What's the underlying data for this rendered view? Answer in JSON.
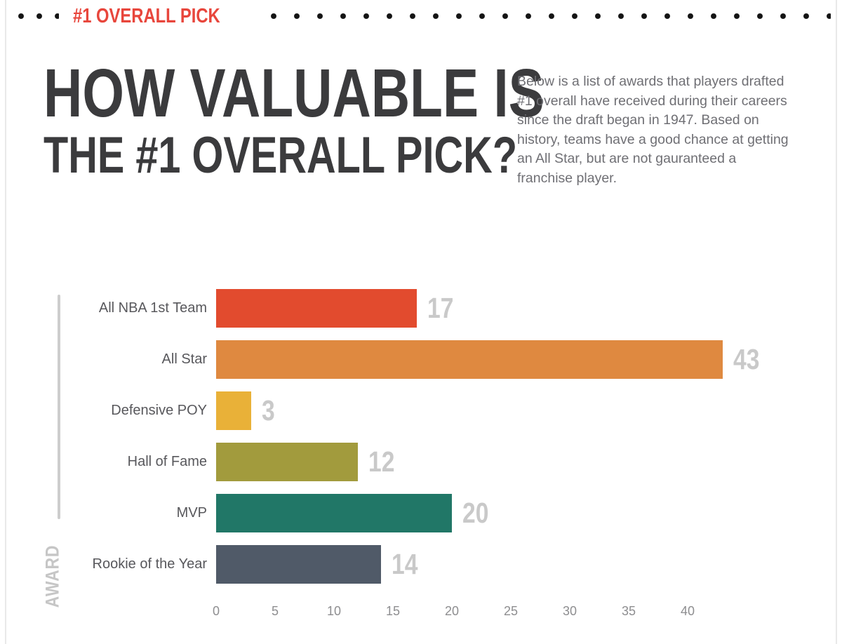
{
  "header": {
    "label": "#1 OVERALL PICK",
    "accent_color": "#e8463c"
  },
  "title": {
    "line1": "HOW VALUABLE IS",
    "line2": "THE #1 OVERALL PICK?",
    "color": "#3b3b3d"
  },
  "intro": {
    "text": "Below is a list of awards that players drafted #1 overall have received during their careers since the draft began in 1947. Based on history, teams have a good chance at getting an All Star, but are not gauranteed a franchise player."
  },
  "chart_data": {
    "type": "bar",
    "orientation": "horizontal",
    "title": "",
    "xlabel": "",
    "ylabel": "AWARD",
    "categories": [
      "All NBA 1st Team",
      "All Star",
      "Defensive POY",
      "Hall of Fame",
      "MVP",
      "Rookie of the Year"
    ],
    "values": [
      17,
      43,
      3,
      12,
      20,
      14
    ],
    "bar_colors": [
      "#e24b2e",
      "#df8940",
      "#e9b138",
      "#a29b3d",
      "#217767",
      "#505a68"
    ],
    "x_ticks": [
      0,
      5,
      10,
      15,
      20,
      25,
      30,
      35,
      40
    ],
    "xlim": [
      0,
      43
    ],
    "grid": false,
    "legend": false,
    "value_label_color": "#c9c9c9",
    "tick_label_color": "#8e8e90",
    "axis_line_color": "#cdcdcd"
  }
}
